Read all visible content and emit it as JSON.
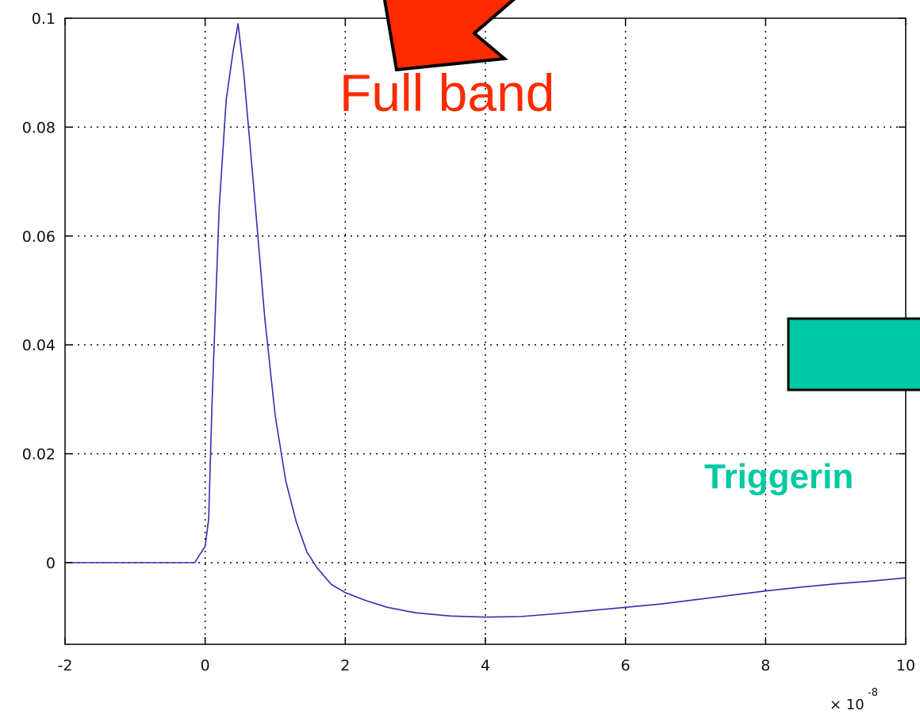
{
  "chart_data": {
    "type": "line",
    "title": "",
    "xlabel": "",
    "ylabel": "",
    "x_multiplier_label": "× 10",
    "x_multiplier_exponent": "-8",
    "xlim": [
      -2,
      10
    ],
    "ylim": [
      -0.015,
      0.1
    ],
    "grid": true,
    "x_ticks": [
      -2,
      0,
      2,
      4,
      6,
      8,
      10
    ],
    "x_tick_labels": [
      "-2",
      "0",
      "2",
      "4",
      "6",
      "8",
      "10"
    ],
    "y_ticks": [
      0,
      0.02,
      0.04,
      0.06,
      0.08,
      0.1
    ],
    "y_tick_labels": [
      "0",
      "0.02",
      "0.04",
      "0.06",
      "0.08",
      "0.1"
    ],
    "series": [
      {
        "color": "#2f2fb0",
        "x": [
          -2,
          -0.15,
          0,
          0.05,
          0.1,
          0.2,
          0.3,
          0.4,
          0.47,
          0.55,
          0.7,
          0.85,
          1.0,
          1.15,
          1.3,
          1.45,
          1.6,
          1.8,
          2.0,
          2.3,
          2.6,
          3.0,
          3.5,
          4.0,
          4.5,
          5.0,
          5.5,
          6.0,
          6.5,
          7.0,
          7.5,
          8.0,
          8.5,
          9.0,
          9.5,
          10.0
        ],
        "y": [
          0,
          0,
          0.003,
          0.008,
          0.03,
          0.065,
          0.085,
          0.094,
          0.099,
          0.09,
          0.068,
          0.045,
          0.027,
          0.015,
          0.0075,
          0.002,
          -0.001,
          -0.004,
          -0.0055,
          -0.007,
          -0.0082,
          -0.0092,
          -0.0098,
          -0.01,
          -0.0099,
          -0.0094,
          -0.0088,
          -0.0082,
          -0.0076,
          -0.0068,
          -0.006,
          -0.0052,
          -0.0045,
          -0.0039,
          -0.0034,
          -0.0028
        ]
      }
    ],
    "annotations": [
      {
        "text": "Full band",
        "color": "#ff2a00"
      },
      {
        "text": "Triggerin",
        "color": "#00c9a4"
      }
    ]
  }
}
